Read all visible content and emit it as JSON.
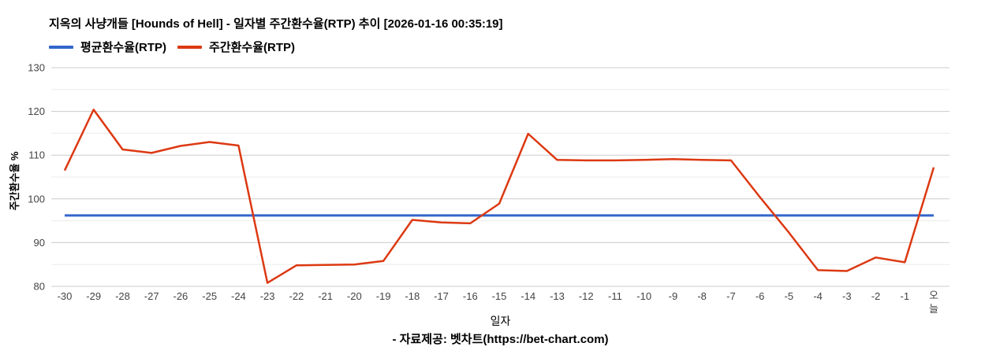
{
  "title": "지옥의 사냥개들 [Hounds of Hell] - 일자별 주간환수율(RTP) 추이 [2026-01-16 00:35:19]",
  "legend": {
    "position": "top",
    "items": [
      {
        "label": "평균환수율(RTP)",
        "color": "#3366cc"
      },
      {
        "label": "주간환수율(RTP)",
        "color": "#dc3912"
      }
    ]
  },
  "footer": {
    "source": "- 자료제공: 벳차트(https://bet-chart.com)"
  },
  "colors": {
    "background": "#ffffff",
    "average_line": "#3366cc",
    "weekly_line": "#dc3912",
    "gridline_major": "#cccccc",
    "gridline_minor": "#ebebeb",
    "tick_label": "#444444",
    "text": "#000000"
  },
  "chart_data": {
    "type": "line",
    "title": "지옥의 사냥개들 [Hounds of Hell] - 일자별 주간환수율(RTP) 추이 [2026-01-16 00:35:19]",
    "xlabel": "일자",
    "ylabel": "주간환수율 %",
    "ylim": [
      80,
      130
    ],
    "y_major_tick_step": 10,
    "gridline_step": 5,
    "grid": true,
    "legend_position": "top",
    "categories": [
      "-30",
      "-29",
      "-28",
      "-27",
      "-26",
      "-25",
      "-24",
      "-23",
      "-22",
      "-21",
      "-20",
      "-19",
      "-18",
      "-17",
      "-16",
      "-15",
      "-14",
      "-13",
      "-12",
      "-11",
      "-10",
      "-9",
      "-8",
      "-7",
      "-6",
      "-5",
      "-4",
      "-3",
      "-2",
      "-1",
      "오늘"
    ],
    "series": [
      {
        "name": "평균환수율(RTP)",
        "color": "#3366cc",
        "constant": 96.2
      },
      {
        "name": "주간환수율(RTP)",
        "color": "#dc3912",
        "values": [
          106.5,
          120.4,
          111.3,
          110.5,
          112.1,
          113.0,
          112.2,
          80.8,
          84.8,
          84.9,
          85.0,
          85.8,
          95.2,
          94.6,
          94.4,
          98.9,
          114.9,
          108.9,
          108.8,
          108.8,
          108.9,
          109.1,
          108.9,
          108.8,
          100.4,
          92.3,
          83.7,
          83.5,
          86.6,
          85.5,
          107.2
        ]
      }
    ]
  }
}
